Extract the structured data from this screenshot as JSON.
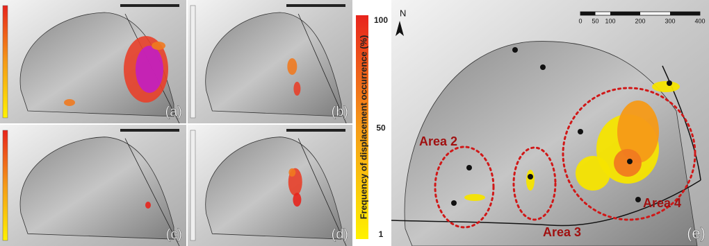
{
  "panels": [
    {
      "label": "(a)"
    },
    {
      "label": "(b)"
    },
    {
      "label": "(c)"
    },
    {
      "label": "(d)"
    }
  ],
  "colorbar": {
    "title": "Frequency of displacement occurrence (%)",
    "ticks": [
      100,
      50,
      1
    ]
  },
  "main_map": {
    "label": "(e)",
    "north": "N",
    "scale_ticks": [
      0,
      50,
      100,
      200,
      300,
      400
    ],
    "areas": [
      "Area 2",
      "Area 3",
      "Area 4"
    ]
  }
}
